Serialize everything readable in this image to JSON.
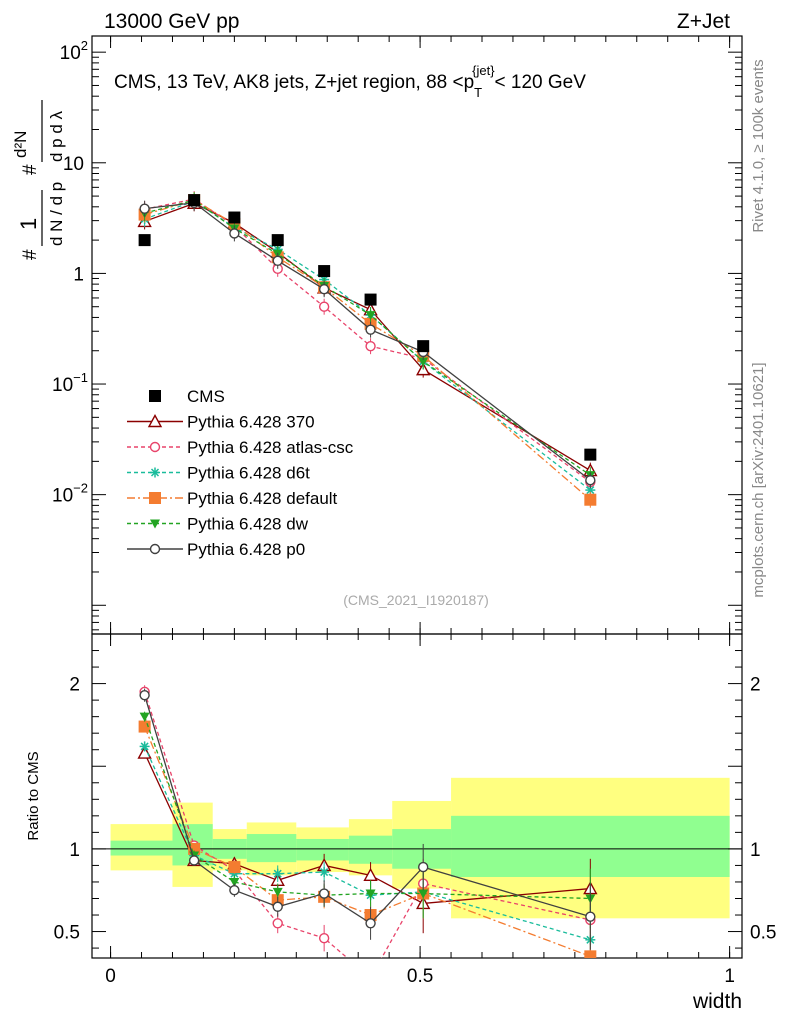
{
  "header": {
    "energy_label": "13000 GeV pp",
    "process_label": "Z+Jet",
    "rivet_label": "Rivet 4.1.0, ≥ 100k events",
    "source_label": "mcplots.cern.ch [arXiv:2401.10621]",
    "analysis_id": "(CMS_2021_I1920187)"
  },
  "chart_data": {
    "type": "line",
    "title": "CMS, 13 TeV, AK8 jets, Z+jet region, 88 <p_T^{jet}< 120 GeV",
    "title_parts": {
      "before": "CMS, 13 TeV, AK8 jets, Z+jet region, 88 <p",
      "sub": "T",
      "sup": "{jet}",
      "after": "< 120 GeV"
    },
    "xlabel": "width",
    "ylabel": "1/dN/dp_T # d²N / dp_T dλ",
    "ratio_ylabel": "Ratio to CMS",
    "xlim": [
      -0.03,
      1.02
    ],
    "ylim_main": [
      0.00055,
      140
    ],
    "ylim_ratio": [
      0.34,
      2.3
    ],
    "yscale_main": "log",
    "x_ticks": [
      {
        "v": 0,
        "label": "0"
      },
      {
        "v": 0.5,
        "label": "0.5"
      },
      {
        "v": 1,
        "label": "1"
      }
    ],
    "main_y_ticks": [
      {
        "v": 0.01,
        "base": "10",
        "exp": "−2"
      },
      {
        "v": 0.1,
        "base": "10",
        "exp": "−1"
      },
      {
        "v": 1,
        "base": "1",
        "exp": ""
      },
      {
        "v": 10,
        "base": "10",
        "exp": ""
      },
      {
        "v": 100,
        "base": "10",
        "exp": "2"
      }
    ],
    "ratio_y_ticks": [
      {
        "v": 0.5,
        "label": "0.5"
      },
      {
        "v": 1,
        "label": "1"
      },
      {
        "v": 2,
        "label": "2"
      }
    ],
    "bin_edges": [
      0,
      0.1,
      0.165,
      0.22,
      0.3,
      0.385,
      0.455,
      0.55,
      1.0
    ],
    "band_green": [
      [
        0.96,
        1.05
      ],
      [
        0.9,
        1.15
      ],
      [
        0.94,
        1.06
      ],
      [
        0.92,
        1.09
      ],
      [
        0.93,
        1.06
      ],
      [
        0.91,
        1.08
      ],
      [
        0.88,
        1.12
      ],
      [
        0.83,
        1.2
      ]
    ],
    "band_yellow": [
      [
        0.87,
        1.15
      ],
      [
        0.77,
        1.28
      ],
      [
        0.87,
        1.12
      ],
      [
        0.84,
        1.16
      ],
      [
        0.86,
        1.13
      ],
      [
        0.84,
        1.18
      ],
      [
        0.76,
        1.29
      ],
      [
        0.58,
        1.43
      ]
    ],
    "cms_x": [
      0.055,
      0.135,
      0.2,
      0.27,
      0.345,
      0.42,
      0.505,
      0.775
    ],
    "cms_y": [
      2.0,
      4.6,
      3.2,
      2.0,
      1.05,
      0.58,
      0.22,
      0.023
    ],
    "series": [
      {
        "name": "Pythia 6.428 370",
        "color": "#8b0000",
        "dash": "",
        "marker": "triangle-open",
        "x": [
          0.055,
          0.135,
          0.2,
          0.27,
          0.345,
          0.42,
          0.505,
          0.775
        ],
        "y": [
          2.95,
          4.3,
          2.85,
          1.55,
          0.74,
          0.47,
          0.135,
          0.0165
        ],
        "ratio": [
          1.58,
          0.93,
          0.91,
          0.81,
          0.9,
          0.84,
          0.67,
          0.76
        ],
        "err": [
          0.03,
          0.03,
          0.04,
          0.05,
          0.07,
          0.08,
          0.18,
          0.18
        ]
      },
      {
        "name": "Pythia 6.428 atlas-csc",
        "color": "#e8436a",
        "dash": "4,3",
        "marker": "circle-open",
        "x": [
          0.055,
          0.135,
          0.2,
          0.27,
          0.345,
          0.42,
          0.505,
          0.775
        ],
        "y": [
          3.8,
          4.7,
          2.7,
          1.1,
          0.5,
          0.22,
          0.17,
          0.013
        ],
        "ratio": [
          1.95,
          1.02,
          0.87,
          0.55,
          0.46,
          0.22,
          0.79,
          0.57
        ],
        "err": [
          0.04,
          0.03,
          0.05,
          0.06,
          0.08,
          0.1,
          0.15,
          0.2
        ]
      },
      {
        "name": "Pythia 6.428 d6t",
        "color": "#1abc9c",
        "dash": "4,3",
        "marker": "star",
        "x": [
          0.055,
          0.135,
          0.2,
          0.27,
          0.345,
          0.42,
          0.505,
          0.775
        ],
        "y": [
          3.1,
          4.5,
          2.6,
          1.65,
          0.88,
          0.42,
          0.16,
          0.011
        ],
        "ratio": [
          1.62,
          0.96,
          0.85,
          0.85,
          0.86,
          0.72,
          0.74,
          0.45
        ],
        "err": [
          0.03,
          0.03,
          0.04,
          0.05,
          0.06,
          0.08,
          0.15,
          0.2
        ]
      },
      {
        "name": "Pythia 6.428 default",
        "color": "#f47c30",
        "dash": "8,3,2,3",
        "marker": "square",
        "x": [
          0.055,
          0.135,
          0.2,
          0.27,
          0.345,
          0.42,
          0.505,
          0.775
        ],
        "y": [
          3.4,
          4.6,
          2.8,
          1.4,
          0.75,
          0.35,
          0.18,
          0.009
        ],
        "ratio": [
          1.74,
          1.0,
          0.89,
          0.69,
          0.71,
          0.6,
          0.73,
          0.35
        ],
        "err": [
          0.03,
          0.03,
          0.04,
          0.05,
          0.07,
          0.08,
          0.15,
          0.22
        ]
      },
      {
        "name": "Pythia 6.428 dw",
        "color": "#22a422",
        "dash": "4,3",
        "marker": "triangle-down",
        "x": [
          0.055,
          0.135,
          0.2,
          0.27,
          0.345,
          0.42,
          0.505,
          0.775
        ],
        "y": [
          3.5,
          4.6,
          2.55,
          1.5,
          0.77,
          0.42,
          0.16,
          0.015
        ],
        "ratio": [
          1.8,
          0.96,
          0.8,
          0.74,
          0.72,
          0.73,
          0.73,
          0.7
        ],
        "err": [
          0.03,
          0.03,
          0.04,
          0.05,
          0.07,
          0.08,
          0.15,
          0.18
        ]
      },
      {
        "name": "Pythia 6.428 p0",
        "color": "#404040",
        "dash": "",
        "marker": "circle-open",
        "x": [
          0.055,
          0.135,
          0.2,
          0.27,
          0.345,
          0.42,
          0.505,
          0.775
        ],
        "y": [
          3.85,
          4.35,
          2.3,
          1.3,
          0.72,
          0.31,
          0.195,
          0.0135
        ],
        "ratio": [
          1.93,
          0.93,
          0.75,
          0.65,
          0.73,
          0.55,
          0.89,
          0.59
        ],
        "err": [
          0.04,
          0.03,
          0.04,
          0.06,
          0.08,
          0.1,
          0.14,
          0.2
        ]
      }
    ]
  }
}
